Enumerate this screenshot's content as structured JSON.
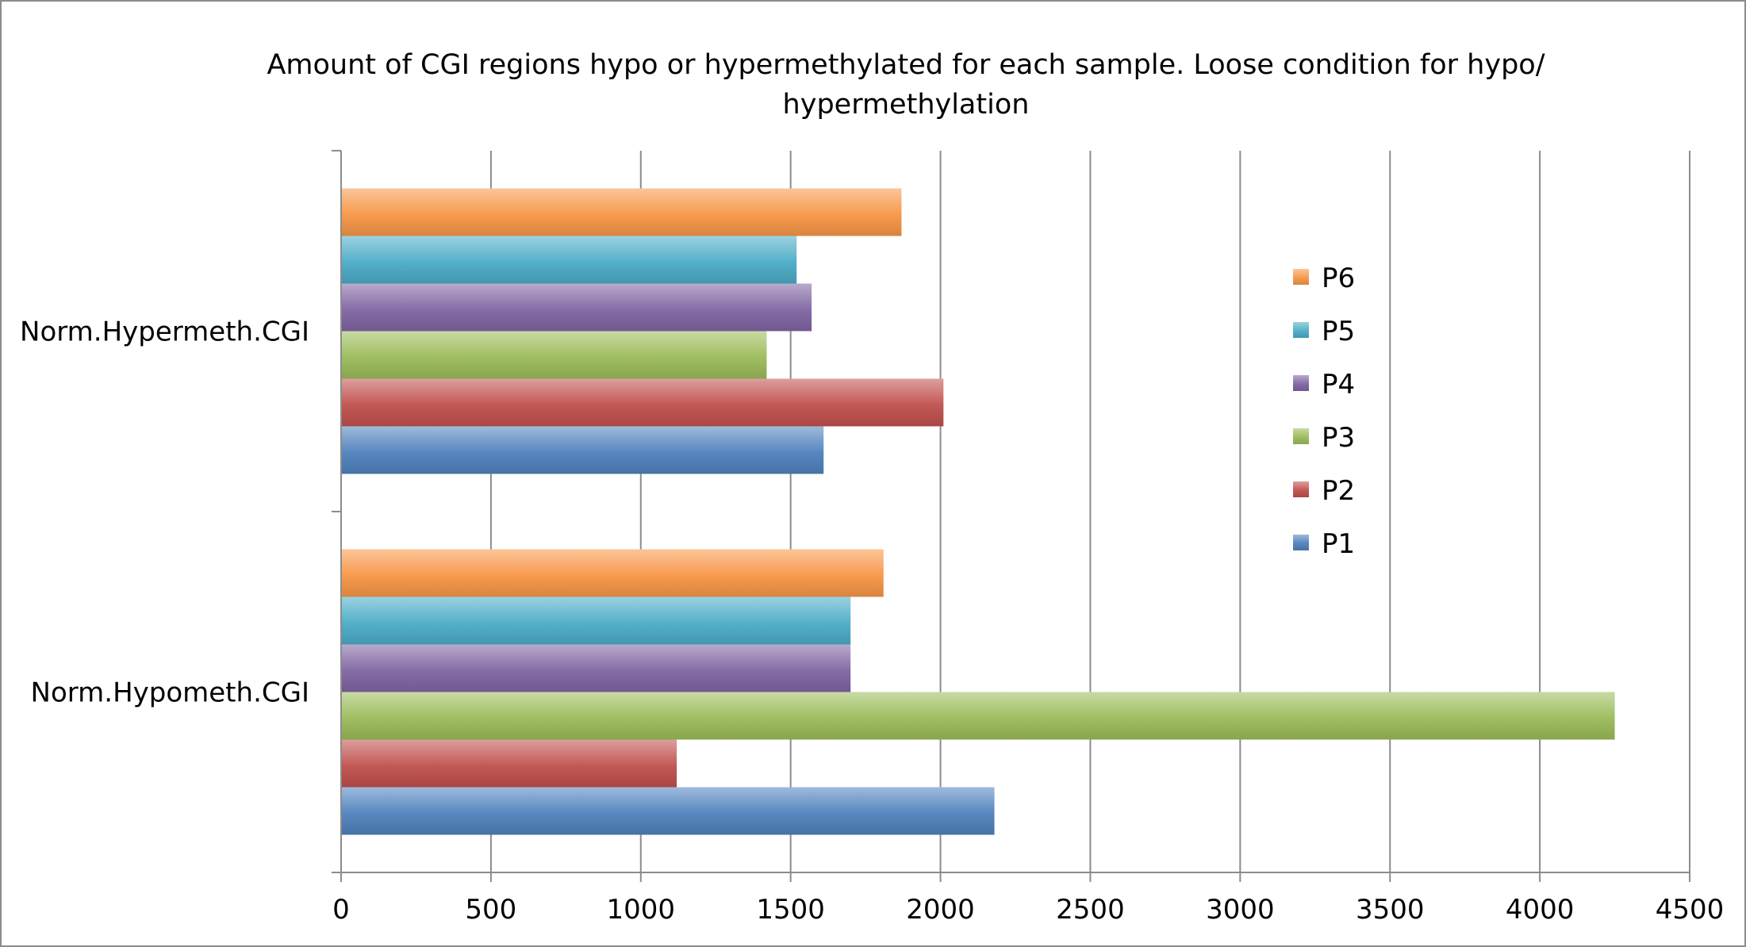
{
  "chart_data": {
    "type": "bar",
    "orientation": "horizontal",
    "title": "Amount of CGI regions hypo or hypermethylated for each sample. Loose condition for hypo/ hypermethylation",
    "title_lines": [
      "Amount of CGI regions hypo or hypermethylated for each sample. Loose condition for hypo/",
      "hypermethylation"
    ],
    "categories": [
      "Norm.Hypermeth.CGI",
      "Norm.Hypometh.CGI"
    ],
    "series": [
      {
        "name": "P1",
        "color": "#4F81BD",
        "values": [
          1610,
          2180
        ]
      },
      {
        "name": "P2",
        "color": "#C0504D",
        "values": [
          2010,
          1120
        ]
      },
      {
        "name": "P3",
        "color": "#9BBB59",
        "values": [
          1420,
          4250
        ]
      },
      {
        "name": "P4",
        "color": "#8064A2",
        "values": [
          1570,
          1700
        ]
      },
      {
        "name": "P5",
        "color": "#4BACC6",
        "values": [
          1520,
          1700
        ]
      },
      {
        "name": "P6",
        "color": "#F79646",
        "values": [
          1870,
          1810
        ]
      }
    ],
    "xlim": [
      0,
      4500
    ],
    "xticks": [
      "0",
      "500",
      "1000",
      "1500",
      "2000",
      "2500",
      "3000",
      "3500",
      "4000",
      "4500"
    ],
    "grid": "vertical",
    "legend_position": "right",
    "legend_order": [
      "P6",
      "P5",
      "P4",
      "P3",
      "P2",
      "P1"
    ]
  }
}
